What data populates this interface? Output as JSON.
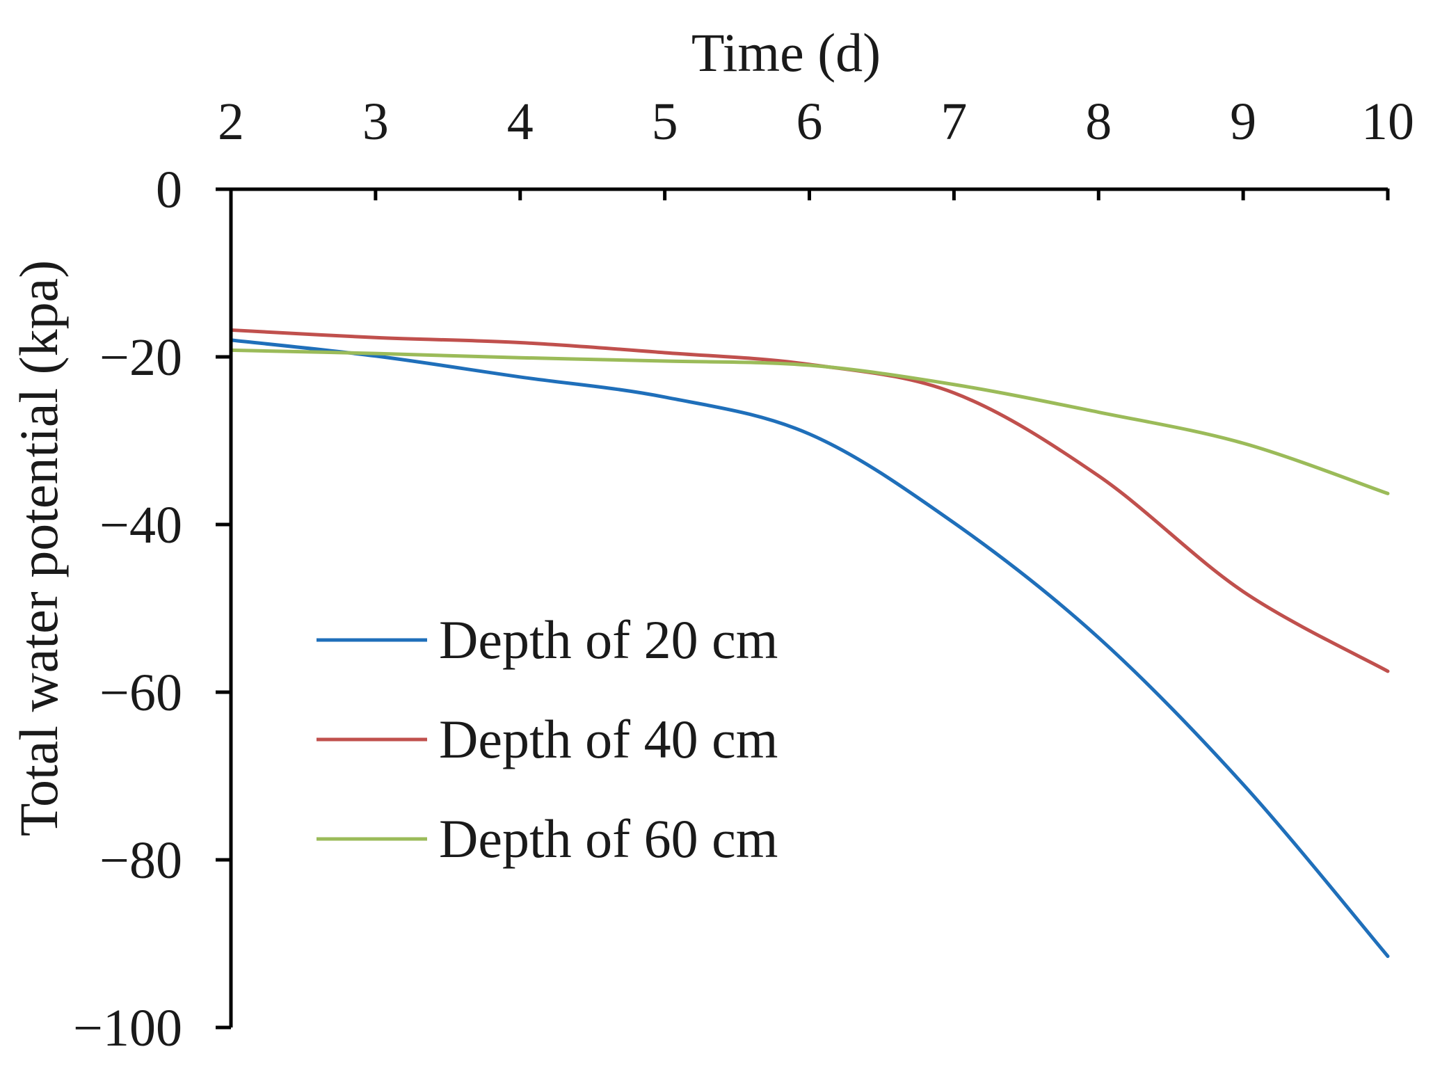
{
  "chart_data": {
    "type": "line",
    "title": "",
    "xlabel": "Time (d)",
    "ylabel": "Total water potential (kpa)",
    "xlim": [
      2,
      10
    ],
    "ylim": [
      -100,
      0
    ],
    "x_ticks": [
      2,
      3,
      4,
      5,
      6,
      7,
      8,
      9,
      10
    ],
    "y_ticks": [
      0,
      -20,
      -40,
      -60,
      -80,
      -100
    ],
    "y_tick_labels": [
      "0",
      "−20",
      "−40",
      "−60",
      "−80",
      "−100"
    ],
    "x_axis_position": "top",
    "grid": false,
    "legend_position": "center-left",
    "x": [
      2,
      3,
      4,
      5,
      6,
      7,
      8,
      9,
      10
    ],
    "series": [
      {
        "name": "Depth of 20 cm",
        "color": "#1f6fba",
        "values": [
          -18,
          -19.9,
          -22.4,
          -24.8,
          -29.2,
          -39.8,
          -53.5,
          -71,
          -91.5
        ]
      },
      {
        "name": "Depth of 40 cm",
        "color": "#c0504d",
        "values": [
          -16.8,
          -17.7,
          -18.3,
          -19.5,
          -20.9,
          -24.3,
          -34.2,
          -48,
          -57.5
        ]
      },
      {
        "name": "Depth of 60 cm",
        "color": "#9bbb59",
        "values": [
          -19.2,
          -19.6,
          -20.1,
          -20.5,
          -21,
          -23.3,
          -26.6,
          -30.3,
          -36.3
        ]
      }
    ]
  }
}
